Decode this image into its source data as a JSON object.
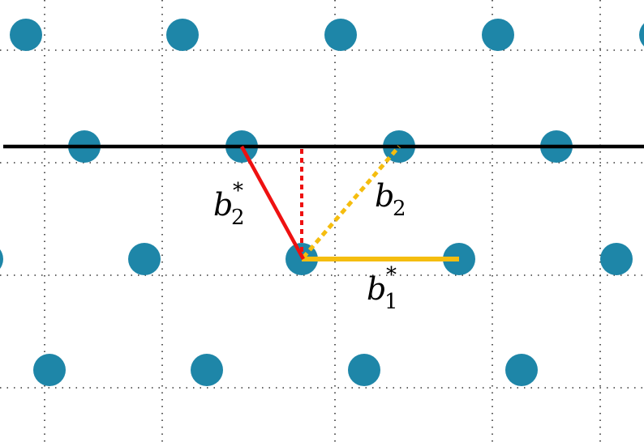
{
  "colors": {
    "background": "#ffffff",
    "lattice_point": "#1e86a8",
    "grid_dots": "#333333",
    "baseline": "#000000",
    "vector_b2_star": "#ee1111",
    "vector_b1_b2": "#f5bd0f"
  },
  "labels": {
    "b2_star": {
      "base": "b",
      "sub": "2",
      "sup": "*"
    },
    "b2": {
      "base": "b",
      "sub": "2"
    },
    "b1_star": {
      "base": "b",
      "sub": "1",
      "sup": "*"
    }
  }
}
